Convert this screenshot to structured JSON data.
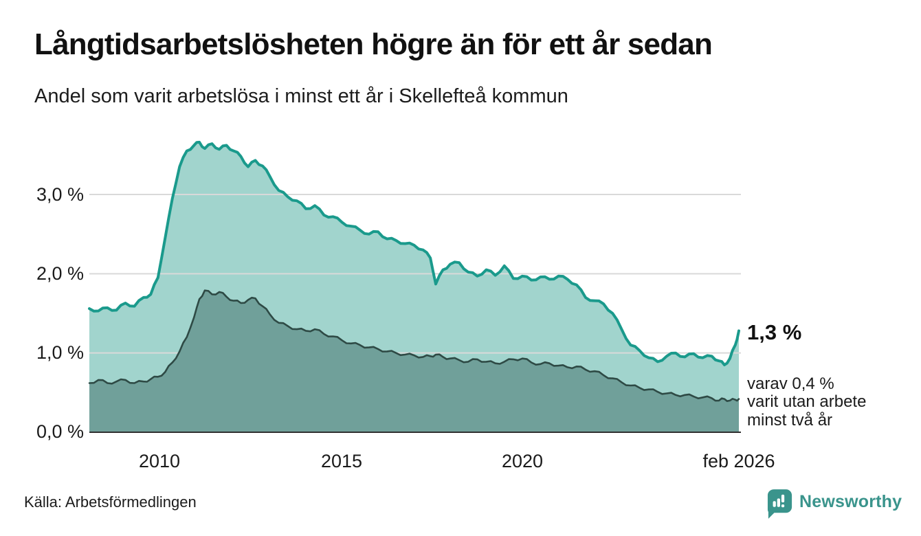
{
  "header": {
    "title": "Långtidsarbetslösheten högre än för ett år sedan",
    "subtitle": "Andel som varit arbetslösa i minst ett år i Skellefteå kommun"
  },
  "chart_data": {
    "type": "area",
    "title": "Långtidsarbetslösheten högre än för ett år sedan",
    "subtitle": "Andel som varit arbetslösa i minst ett år i Skellefteå kommun",
    "unit": "%",
    "xlim": [
      2008.1,
      2026.1
    ],
    "ylim": [
      0,
      3.8
    ],
    "grid": "horizontal",
    "grid_color": "#d9d9d9",
    "axis_color": "#2f2f2f",
    "x": [
      2008.1,
      2008.35,
      2008.6,
      2008.85,
      2009.1,
      2009.35,
      2009.6,
      2009.8,
      2010.0,
      2010.2,
      2010.4,
      2010.6,
      2010.8,
      2011.0,
      2011.15,
      2011.3,
      2011.5,
      2011.7,
      2011.9,
      2012.1,
      2012.3,
      2012.5,
      2012.7,
      2012.9,
      2013.1,
      2013.35,
      2013.6,
      2013.85,
      2014.1,
      2014.35,
      2014.6,
      2014.85,
      2015.1,
      2015.35,
      2015.6,
      2015.85,
      2016.1,
      2016.35,
      2016.6,
      2016.85,
      2017.1,
      2017.35,
      2017.55,
      2017.7,
      2017.9,
      2018.1,
      2018.35,
      2018.6,
      2018.85,
      2019.1,
      2019.35,
      2019.6,
      2019.85,
      2020.1,
      2020.35,
      2020.6,
      2020.85,
      2021.1,
      2021.35,
      2021.6,
      2021.85,
      2022.1,
      2022.35,
      2022.6,
      2022.85,
      2023.1,
      2023.35,
      2023.6,
      2023.85,
      2024.1,
      2024.35,
      2024.6,
      2024.85,
      2025.1,
      2025.35,
      2025.55,
      2025.7,
      2025.85,
      2026.0,
      2026.1
    ],
    "series": [
      {
        "name": "Andel som varit arbetslösa i minst ett år",
        "color": "#1a9a8c",
        "fill": "#a1d4cd",
        "line_width": 4,
        "end_value": "1,3 %",
        "values": [
          1.56,
          1.53,
          1.57,
          1.54,
          1.63,
          1.59,
          1.7,
          1.74,
          1.95,
          2.45,
          2.95,
          3.35,
          3.55,
          3.62,
          3.66,
          3.58,
          3.64,
          3.57,
          3.62,
          3.55,
          3.48,
          3.35,
          3.43,
          3.36,
          3.23,
          3.05,
          2.97,
          2.92,
          2.82,
          2.86,
          2.74,
          2.72,
          2.65,
          2.6,
          2.55,
          2.5,
          2.53,
          2.44,
          2.42,
          2.38,
          2.36,
          2.3,
          2.2,
          1.87,
          2.05,
          2.12,
          2.14,
          2.02,
          1.97,
          2.05,
          1.98,
          2.1,
          1.94,
          1.97,
          1.92,
          1.96,
          1.93,
          1.97,
          1.93,
          1.86,
          1.7,
          1.66,
          1.62,
          1.5,
          1.3,
          1.1,
          1.03,
          0.94,
          0.89,
          0.96,
          1.0,
          0.95,
          0.99,
          0.94,
          0.96,
          0.9,
          0.85,
          0.93,
          1.1,
          1.28
        ]
      },
      {
        "name": "varav utan arbete minst två år",
        "color": "#2e4a45",
        "fill": "#70a09a",
        "line_width": 2.6,
        "end_value": "0,4 %",
        "values": [
          0.62,
          0.66,
          0.62,
          0.64,
          0.66,
          0.62,
          0.64,
          0.67,
          0.7,
          0.76,
          0.88,
          1.02,
          1.2,
          1.45,
          1.68,
          1.79,
          1.74,
          1.77,
          1.71,
          1.66,
          1.63,
          1.67,
          1.69,
          1.59,
          1.49,
          1.38,
          1.34,
          1.3,
          1.28,
          1.3,
          1.24,
          1.21,
          1.16,
          1.12,
          1.1,
          1.07,
          1.05,
          1.02,
          1.0,
          0.98,
          0.97,
          0.95,
          0.96,
          0.98,
          0.95,
          0.93,
          0.91,
          0.89,
          0.92,
          0.89,
          0.87,
          0.89,
          0.92,
          0.93,
          0.88,
          0.86,
          0.87,
          0.84,
          0.82,
          0.83,
          0.79,
          0.77,
          0.72,
          0.68,
          0.63,
          0.59,
          0.56,
          0.54,
          0.51,
          0.49,
          0.47,
          0.47,
          0.45,
          0.44,
          0.43,
          0.4,
          0.42,
          0.4,
          0.41,
          0.42
        ]
      }
    ],
    "y_ticks": [
      {
        "value": 3,
        "label": "3,0 %"
      },
      {
        "value": 2,
        "label": "2,0 %"
      },
      {
        "value": 1,
        "label": "1,0 %"
      },
      {
        "value": 0,
        "label": "0,0 %"
      }
    ],
    "x_ticks": [
      {
        "value": 2010,
        "label": "2010"
      },
      {
        "value": 2015,
        "label": "2015"
      },
      {
        "value": 2020,
        "label": "2020"
      },
      {
        "value": 2026.1,
        "label": "feb 2026"
      }
    ],
    "annotations": {
      "end_value_label": "1,3 %",
      "sub_lines": [
        "varav 0,4 %",
        "varit utan arbete",
        "minst två år"
      ]
    }
  },
  "footer": {
    "source": "Källa: Arbetsförmedlingen",
    "brand": "Newsworthy",
    "brand_color": "#3a948c"
  }
}
